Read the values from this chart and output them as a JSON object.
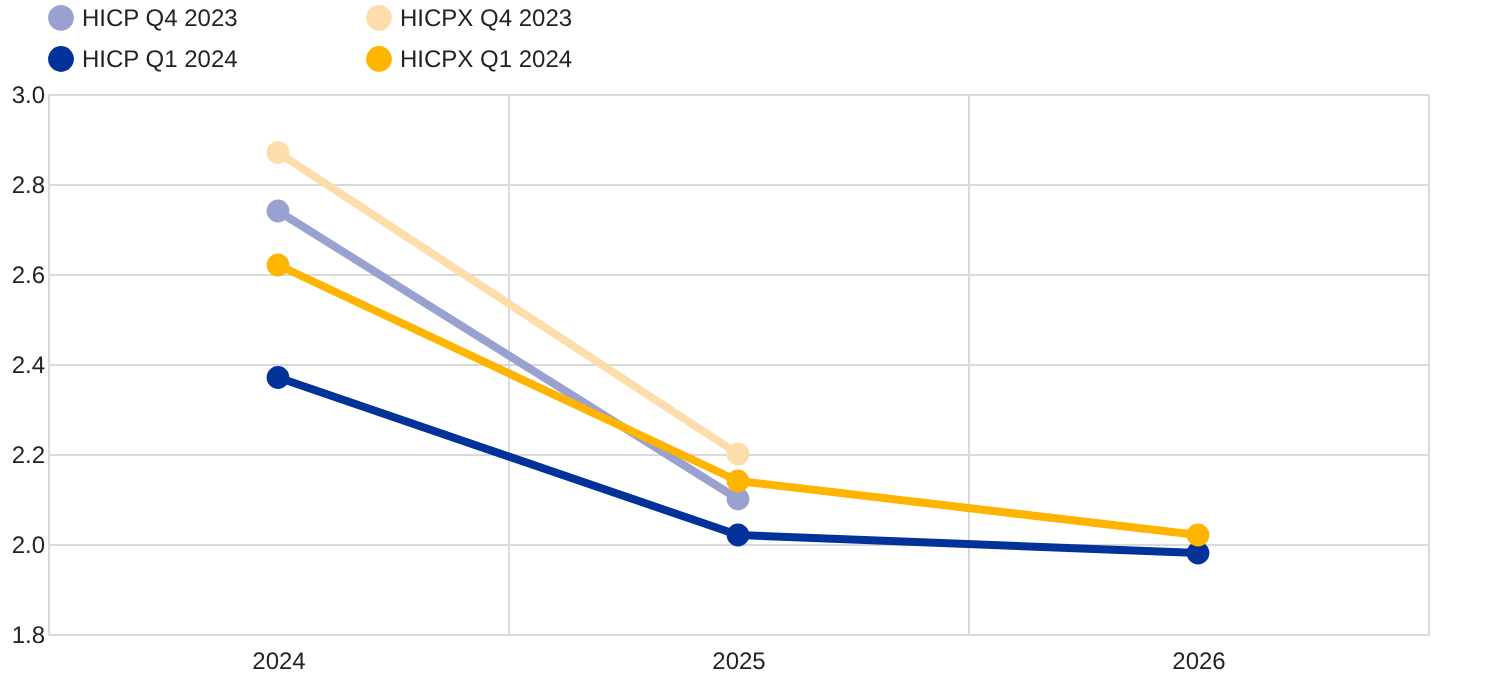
{
  "chart_data": {
    "type": "line",
    "categories": [
      "2024",
      "2025",
      "2026"
    ],
    "series": [
      {
        "name": "HICP Q4 2023",
        "color": "#98a1d0",
        "values": [
          2.74,
          2.1,
          null
        ]
      },
      {
        "name": "HICP Q1 2024",
        "color": "#003299",
        "values": [
          2.37,
          2.02,
          1.98
        ]
      },
      {
        "name": "HICPX Q4 2023",
        "color": "#fdddab",
        "values": [
          2.87,
          2.2,
          null
        ]
      },
      {
        "name": "HICPX Q1 2024",
        "color": "#ffb400",
        "values": [
          2.62,
          2.14,
          2.02
        ]
      }
    ],
    "ylim": [
      1.8,
      3.0
    ],
    "yticks": [
      1.8,
      {
        "value": 2,
        "label": "2.0"
      },
      2.2,
      2.4,
      2.6,
      2.8,
      {
        "value": 3,
        "label": "3.0"
      }
    ],
    "grid": true,
    "legend": "top left",
    "marker": "circle",
    "line_style": "solid"
  }
}
